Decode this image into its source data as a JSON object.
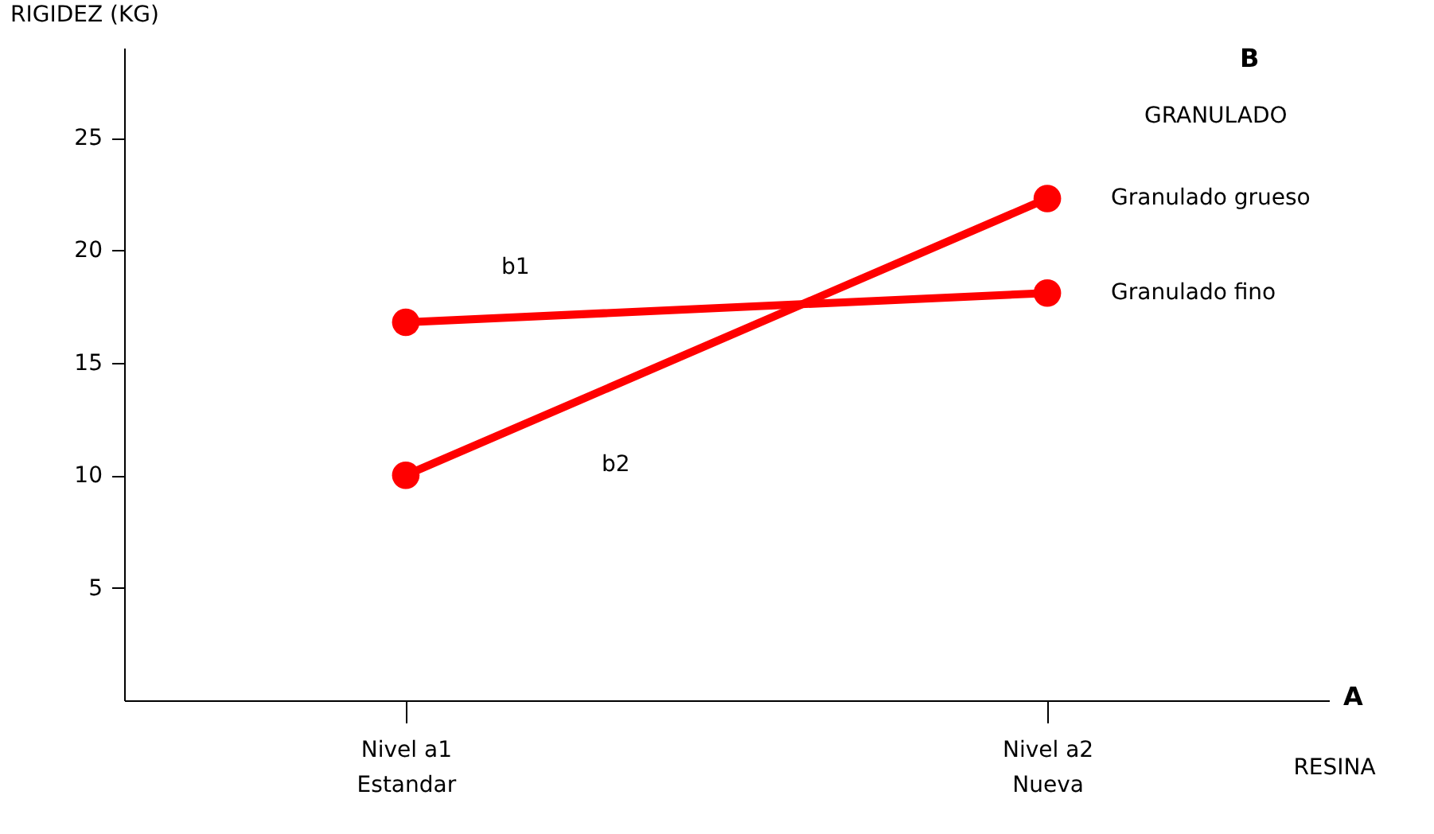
{
  "chart_data": {
    "type": "line",
    "ylabel": "RIGIDEZ (KG)",
    "xlabel": "RESINA",
    "legend_title": "GRANULADO",
    "categories": [
      "Nivel a1\nEstandar",
      "Nivel a2\nNueva"
    ],
    "series": [
      {
        "name": "Granulado grueso",
        "color": "#ff0000",
        "values": [
          10,
          22.3
        ]
      },
      {
        "name": "Granulado fino",
        "color": "#ff0000",
        "values": [
          16.8,
          18.1
        ]
      }
    ],
    "ylim": [
      0,
      29
    ],
    "yticks": [
      5,
      10,
      15,
      20,
      25
    ],
    "grid": false,
    "marker": "circle",
    "line_style": "solid",
    "annotations": [
      "b1",
      "b2",
      "B",
      "A"
    ]
  }
}
